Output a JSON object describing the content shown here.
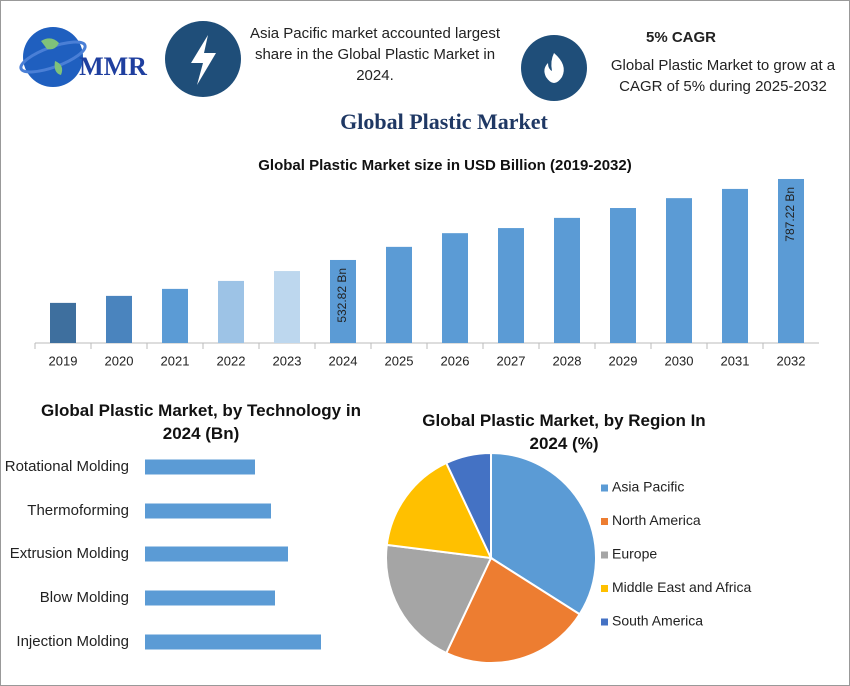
{
  "header": {
    "logo_text": "MMR",
    "fact1": "Asia Pacific market accounted largest share in the Global Plastic Market in 2024.",
    "fact2_title": "5% CAGR",
    "fact2": "Global Plastic Market to grow at a CAGR of 5% during 2025-2032",
    "title": "Global Plastic Market"
  },
  "chart_data": [
    {
      "type": "bar",
      "orientation": "vertical",
      "title": "Global Plastic Market size in USD Billion (2019-2032)",
      "categories": [
        "2019",
        "2020",
        "2021",
        "2022",
        "2023",
        "2024",
        "2025",
        "2026",
        "2027",
        "2028",
        "2029",
        "2030",
        "2031",
        "2032"
      ],
      "values": [
        398,
        420,
        442,
        467,
        498,
        532.82,
        574,
        617,
        633,
        665,
        696,
        727,
        756,
        787.22
      ],
      "value_labels": [
        null,
        null,
        null,
        null,
        null,
        "532.82 Bn",
        null,
        null,
        null,
        null,
        null,
        null,
        null,
        "787.22 Bn"
      ],
      "colors": [
        "#3e6f9e",
        "#4a84be",
        "#5b9bd5",
        "#9dc3e6",
        "#bdd7ee",
        "#5b9bd5",
        "#5b9bd5",
        "#5b9bd5",
        "#5b9bd5",
        "#5b9bd5",
        "#5b9bd5",
        "#5b9bd5",
        "#5b9bd5",
        "#5b9bd5"
      ],
      "ylim": [
        272,
        806
      ]
    },
    {
      "type": "bar",
      "orientation": "horizontal",
      "title": "Global Plastic Market, by Technology in 2024 (Bn)",
      "categories": [
        "Rotational Molding",
        "Thermoforming",
        "Extrusion Molding",
        "Blow Molding",
        "Injection Molding"
      ],
      "values": [
        110,
        126,
        143,
        130,
        176
      ],
      "color": "#5b9bd5",
      "xlim": [
        0,
        200
      ]
    },
    {
      "type": "pie",
      "title": "Global Plastic Market, by Region In 2024 (%)",
      "categories": [
        "Asia Pacific",
        "North America",
        "Europe",
        "Middle East and Africa",
        "South America"
      ],
      "values": [
        34,
        23,
        20,
        16,
        7
      ],
      "colors": [
        "#5b9bd5",
        "#ed7d31",
        "#a5a5a5",
        "#ffc000",
        "#4472c4"
      ]
    }
  ]
}
